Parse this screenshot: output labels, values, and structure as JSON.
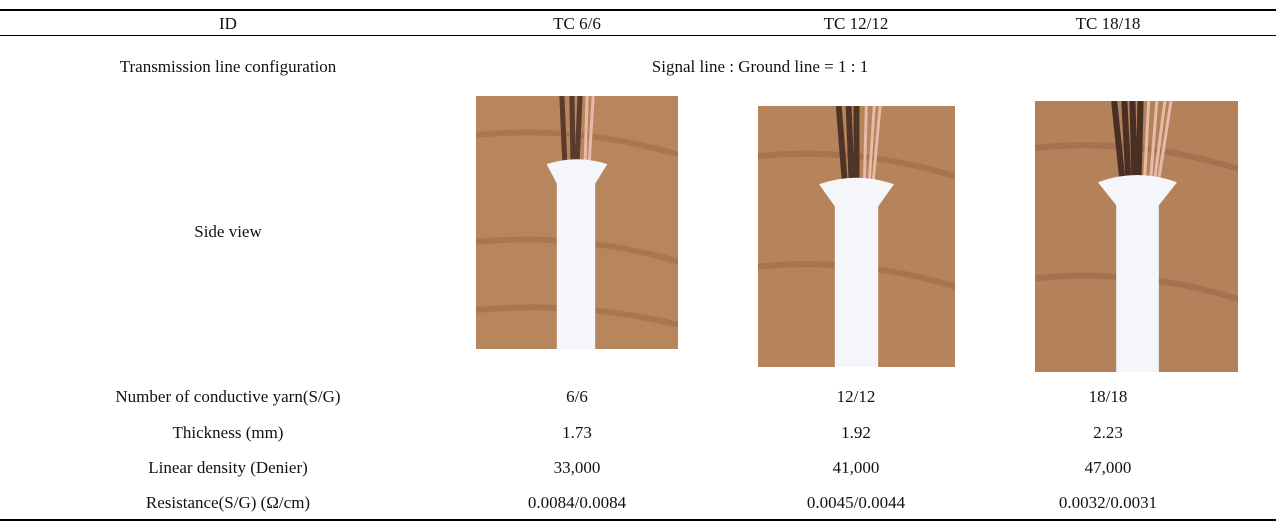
{
  "table": {
    "header": [
      "ID",
      "TC 6/6",
      "TC 12/12",
      "TC 18/18"
    ],
    "configuration": {
      "label": "Transmission line configuration",
      "value": "Signal line : Ground line = 1 : 1"
    },
    "side_view": {
      "label": "Side view"
    },
    "rows": [
      [
        "Number of conductive yarn(S/G)",
        "6/6",
        "12/12",
        "18/18"
      ],
      [
        "Thickness (mm)",
        "1.73",
        "1.92",
        "2.23"
      ],
      [
        "Linear density (Denier)",
        "33,000",
        "41,000",
        "47,000"
      ],
      [
        "Resistance(S/G) (Ω/cm)",
        "0.0084/0.0084",
        "0.0045/0.0044",
        "0.0032/0.0031"
      ]
    ]
  }
}
